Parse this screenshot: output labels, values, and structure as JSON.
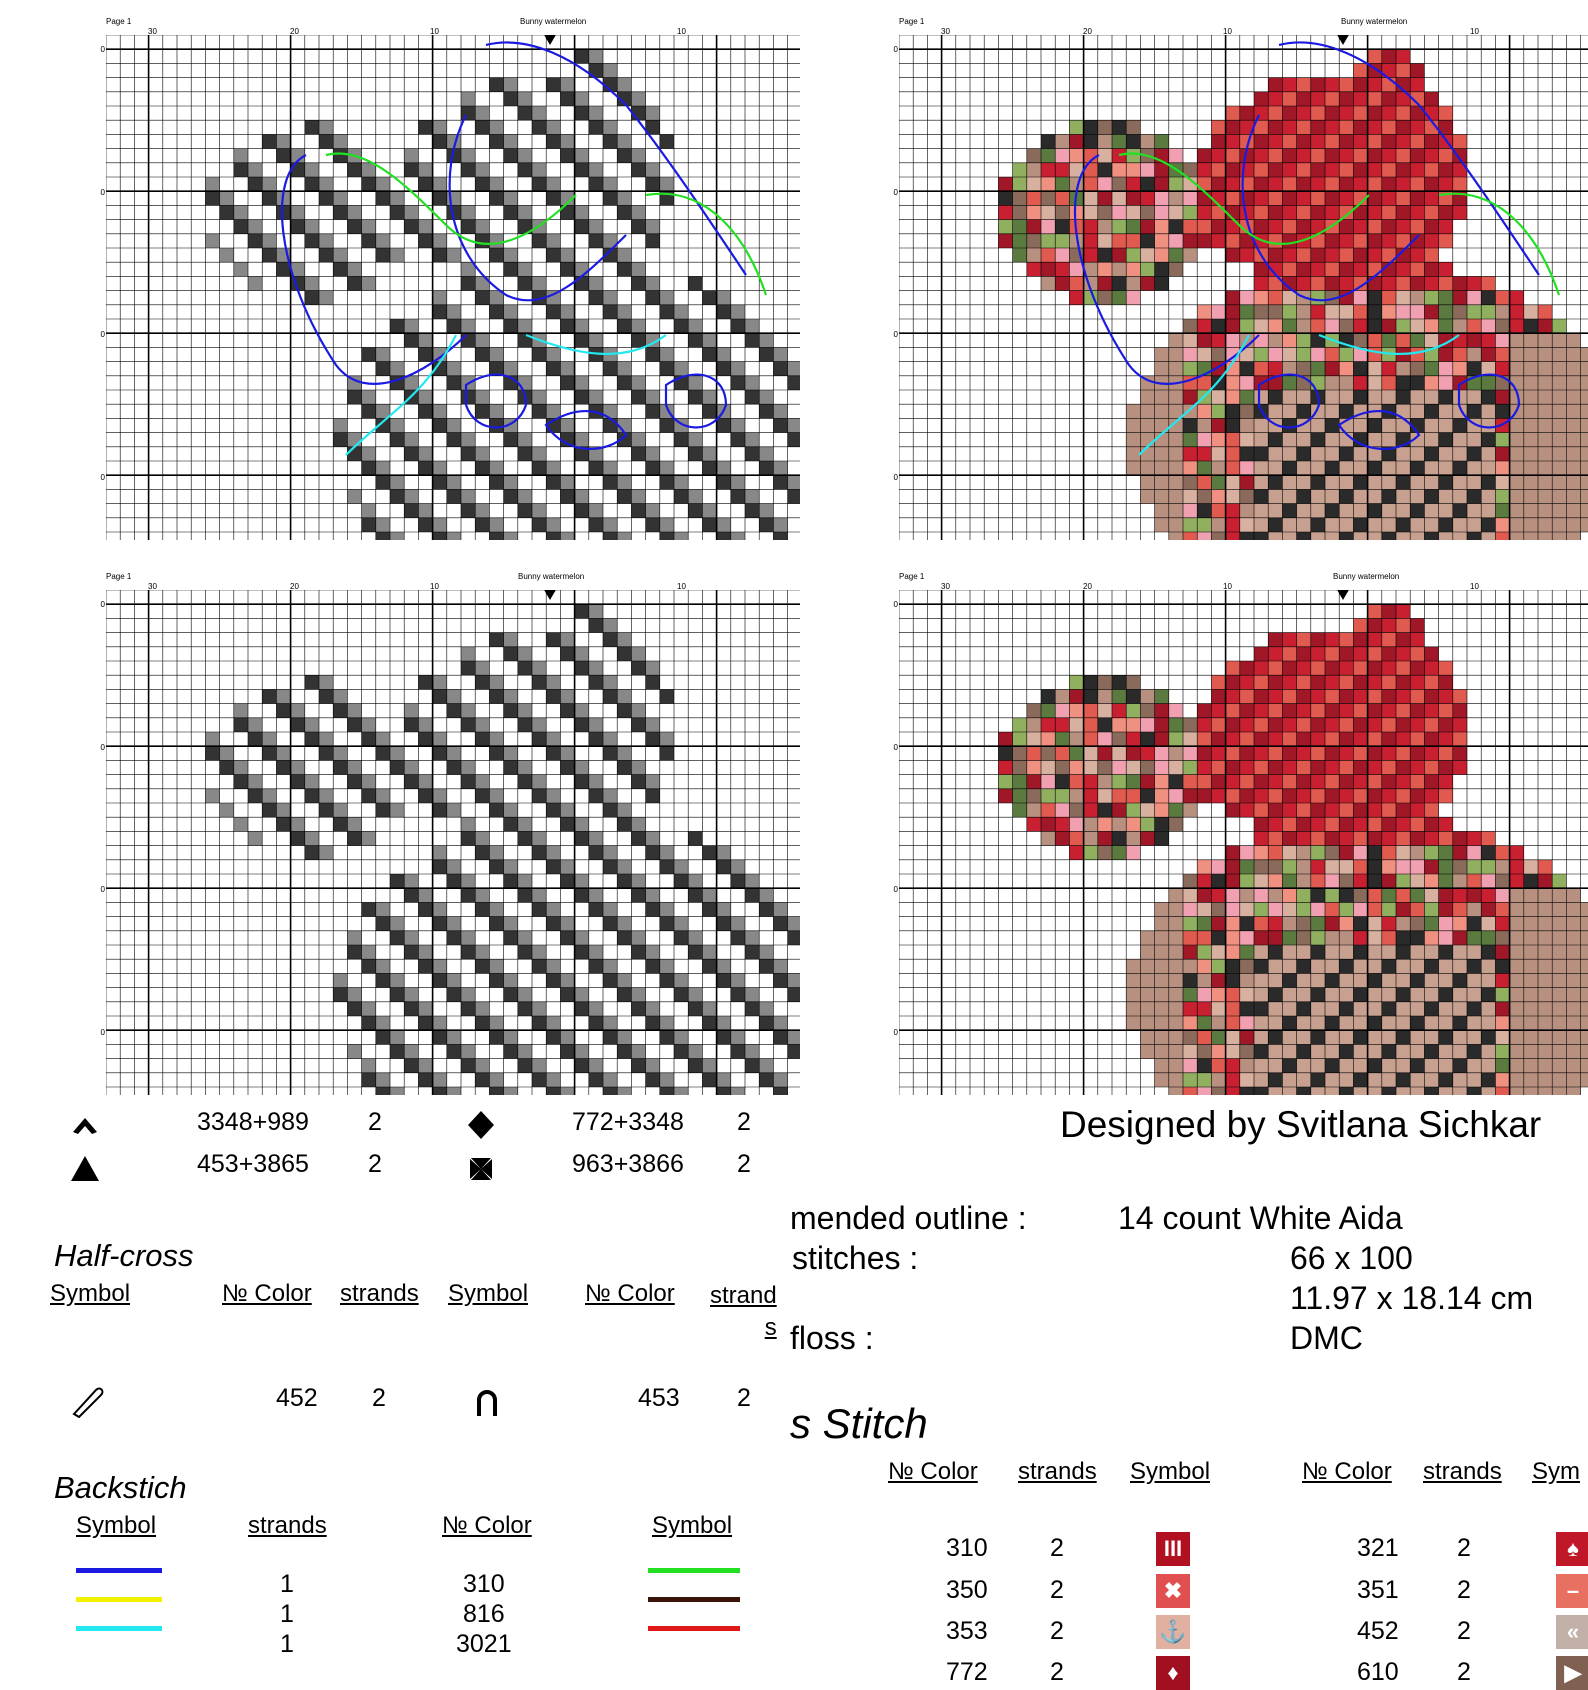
{
  "panels": [
    {
      "page": "Page 1",
      "title": "Bunny watermelon",
      "top_ticks": [
        "30",
        "20",
        "10",
        "10"
      ],
      "side_ticks": [
        "50",
        "40",
        "30",
        "20"
      ],
      "mode": "outline"
    },
    {
      "page": "Page 1",
      "title": "Bunny watermelon",
      "top_ticks": [
        "30",
        "20",
        "10",
        "10"
      ],
      "side_ticks": [
        "50",
        "40",
        "30",
        "20"
      ],
      "mode": "color-outline"
    },
    {
      "page": "Page 1",
      "title": "Bunny watermelon",
      "top_ticks": [
        "30",
        "20",
        "10",
        "10"
      ],
      "side_ticks": [
        "50",
        "40",
        "30",
        "20"
      ],
      "mode": "symbols"
    },
    {
      "page": "Page 1",
      "title": "Bunny watermelon",
      "top_ticks": [
        "30",
        "20",
        "10",
        "10"
      ],
      "side_ticks": [
        "50",
        "40",
        "30",
        "20"
      ],
      "mode": "color"
    }
  ],
  "legend_top": {
    "rows": [
      {
        "symbol_icon": "chevron-up-icon",
        "color": "3348+989",
        "strands": "2",
        "symbol2_icon": "diamond-icon",
        "color2": "772+3348",
        "strands2": "2"
      },
      {
        "symbol_icon": "triangle-icon",
        "color": "453+3865",
        "strands": "2",
        "symbol2_icon": "maltese-cross-icon",
        "color2": "963+3866",
        "strands2": "2"
      }
    ]
  },
  "designer": "Designed  by  Svitlana  Sichkar",
  "info": {
    "rows": [
      {
        "label": "mended outline :",
        "value": "14 count White Aida"
      },
      {
        "label": "stitches :",
        "value": "66 x 100"
      },
      {
        "label": "",
        "value": "11.97 x 18.14 cm"
      },
      {
        "label": "floss :",
        "value": "DMC"
      }
    ]
  },
  "half_cross": {
    "title": "Half-cross",
    "headers": [
      "Symbol",
      "№ Color",
      "strands",
      "Symbol",
      "№ Color",
      "strand\ns"
    ],
    "rows": [
      {
        "icon": "paperclip-icon",
        "color": "452",
        "strands": "2",
        "icon2": "horseshoe-icon",
        "color2": "453",
        "strands2": "2"
      }
    ]
  },
  "backstitch": {
    "title": "Backstich",
    "headers": [
      "Symbol",
      "strands",
      "№ Color",
      "Symbol"
    ],
    "rows": [
      {
        "line_color": "#1a1ae0",
        "strands": "1",
        "color": "310",
        "line2_color": "#22e022"
      },
      {
        "line_color": "#f2f200",
        "strands": "1",
        "color": "816",
        "line2_color": "#3a1408"
      },
      {
        "line_color": "#22e8f0",
        "strands": "1",
        "color": "3021",
        "line2_color": "#e01818"
      }
    ]
  },
  "cross_stitch": {
    "title": "s  Stitch",
    "headers": [
      "№ Color",
      "strands",
      "Symbol",
      "№ Color",
      "strands",
      "Sym"
    ],
    "rows": [
      {
        "color": "310",
        "strands": "2",
        "sym_bg": "#b01020",
        "sym": "III",
        "color2": "321",
        "strands2": "2",
        "sym2_bg": "#c01828",
        "sym2": "♠"
      },
      {
        "color": "350",
        "strands": "2",
        "sym_bg": "#e05050",
        "sym": "✖",
        "color2": "351",
        "strands2": "2",
        "sym2_bg": "#e87060",
        "sym2": "–"
      },
      {
        "color": "353",
        "strands": "2",
        "sym_bg": "#e0b0a0",
        "sym": "⚓",
        "color2": "452",
        "strands2": "2",
        "sym2_bg": "#c0b0a8",
        "sym2": "«"
      },
      {
        "color": "772",
        "strands": "2",
        "sym_bg": "#a01020",
        "sym": "♦",
        "color2": "610",
        "strands2": "2",
        "sym2_bg": "#806050",
        "sym2": "▶"
      }
    ]
  }
}
